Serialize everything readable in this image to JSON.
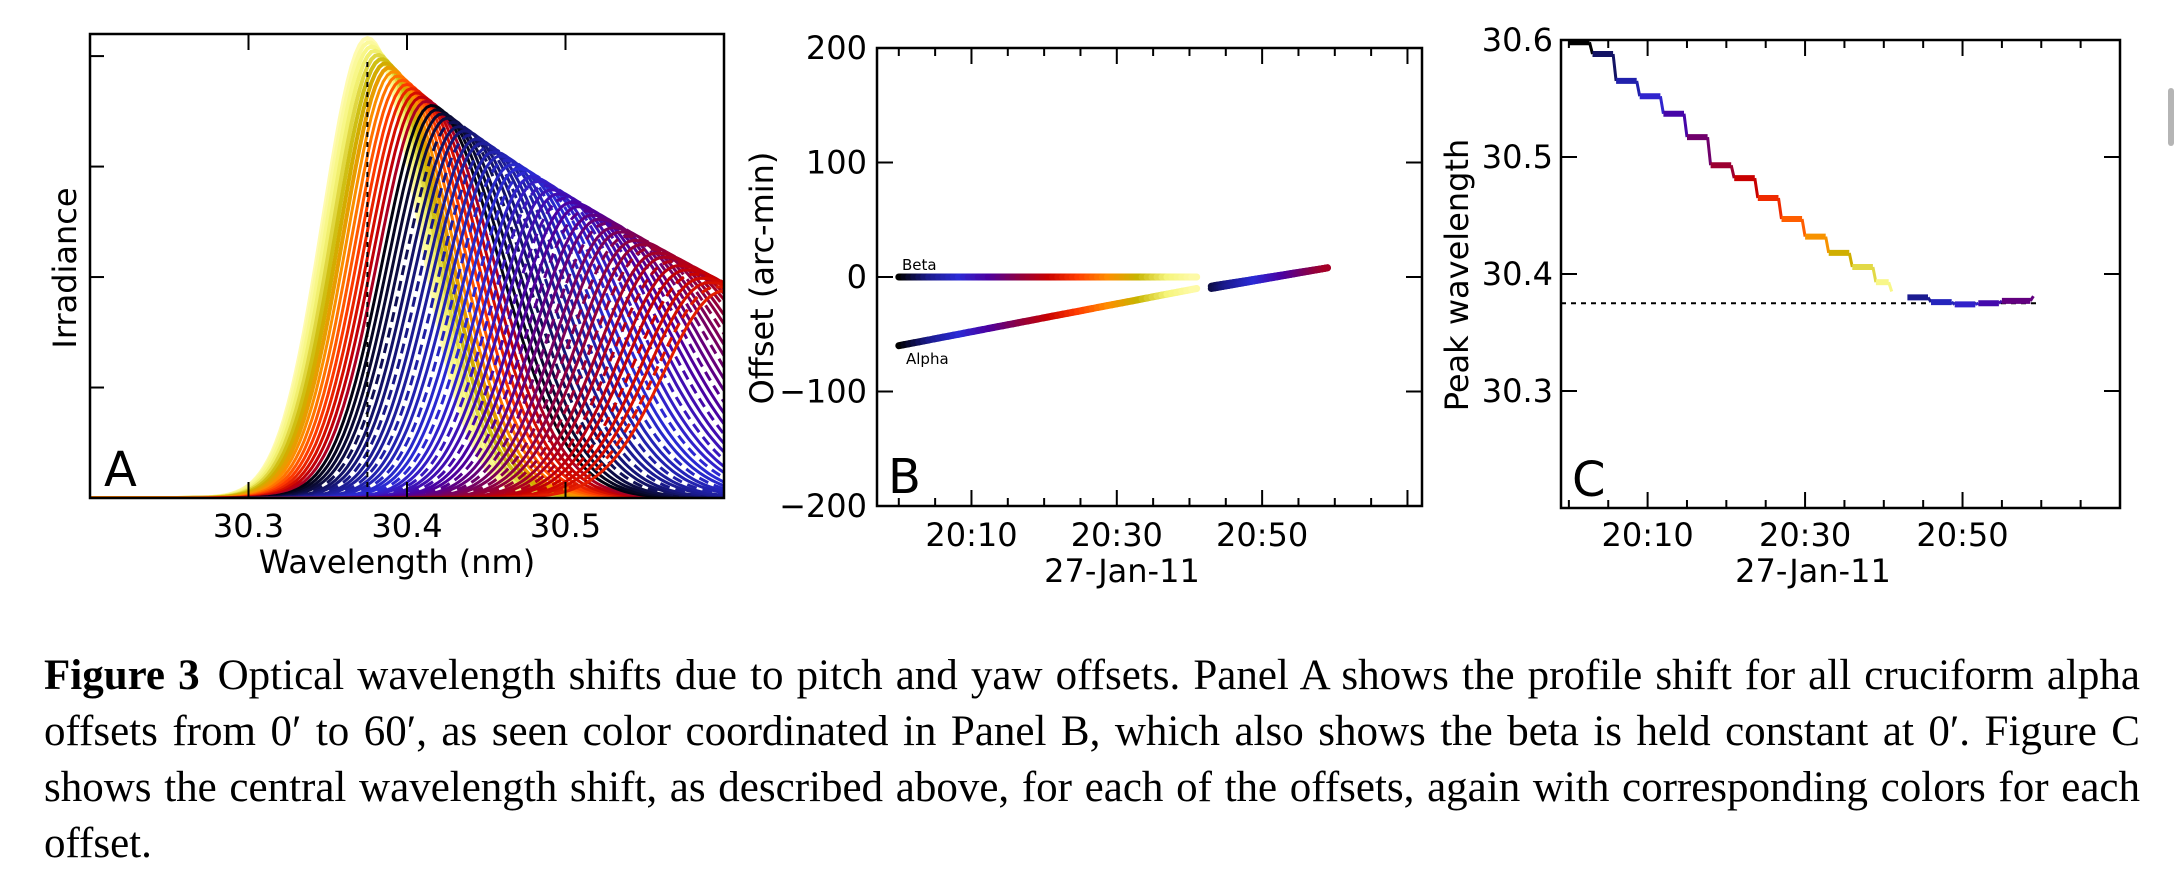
{
  "chart_data": [
    {
      "type": "line",
      "panel": "A",
      "xlabel": "Wavelength (nm)",
      "ylabel": "Irradiance",
      "xlim": [
        30.2,
        30.6
      ],
      "xticks": [
        "30.3",
        "30.4",
        "30.5"
      ],
      "grid": false,
      "series_count": 61,
      "offsets_arcmin": [
        0,
        60
      ],
      "peak_wavelength_range": [
        30.375,
        30.6
      ],
      "reference_line_x": 30.375
    },
    {
      "type": "line",
      "panel": "B",
      "xlabel": "27-Jan-11",
      "ylabel": "Offset (arc-min)",
      "ylim": [
        -200,
        200
      ],
      "yticks": [
        "200",
        "100",
        "0",
        "−100",
        "−200"
      ],
      "xticks": [
        "20:10",
        "20:30",
        "20:50"
      ],
      "grid": false,
      "series": [
        {
          "name": "Beta",
          "x": [
            "20:00",
            "20:41",
            "20:43",
            "20:59"
          ],
          "values": [
            0,
            0,
            -8,
            8
          ]
        },
        {
          "name": "Alpha",
          "x": [
            "20:00",
            "20:41",
            "20:43",
            "20:59"
          ],
          "values": [
            -60,
            -10,
            -10,
            8
          ]
        }
      ]
    },
    {
      "type": "line",
      "panel": "C",
      "xlabel": "27-Jan-11",
      "ylabel": "Peak wavelength",
      "ylim": [
        30.2,
        30.6
      ],
      "yticks": [
        "30.6",
        "30.5",
        "30.4",
        "30.3"
      ],
      "xticks": [
        "20:10",
        "20:30",
        "20:50"
      ],
      "grid": false,
      "x": [
        "20:00",
        "20:03",
        "20:06",
        "20:09",
        "20:12",
        "20:15",
        "20:18",
        "20:21",
        "20:24",
        "20:27",
        "20:30",
        "20:33",
        "20:36",
        "20:39",
        "20:41",
        "20:43",
        "20:46",
        "20:49",
        "20:52",
        "20:55",
        "20:59"
      ],
      "values": [
        30.598,
        30.588,
        30.565,
        30.552,
        30.537,
        30.517,
        30.493,
        30.482,
        30.465,
        30.447,
        30.432,
        30.418,
        30.406,
        30.393,
        30.385,
        30.38,
        30.376,
        30.374,
        30.375,
        30.377,
        30.381
      ],
      "reference_line_y": 30.375
    }
  ],
  "caption": {
    "label": "Figure 3",
    "text": "Optical wavelength shifts due to pitch and yaw offsets. Panel A shows the profile shift for all cruciform alpha offsets from 0′ to 60′, as seen color coordinated in Panel B, which also shows the beta is held constant at 0′. Figure C shows the central wavelength shift, as described above, for each of the offsets, again with corresponding colors for each offset."
  },
  "colors": {
    "palette": [
      "#000000",
      "#1a1a8c",
      "#2b2bd6",
      "#4b00a0",
      "#8b0045",
      "#c80000",
      "#ff3c00",
      "#ff8c00",
      "#c8b400",
      "#f5f57a",
      "#fffbb0"
    ]
  }
}
